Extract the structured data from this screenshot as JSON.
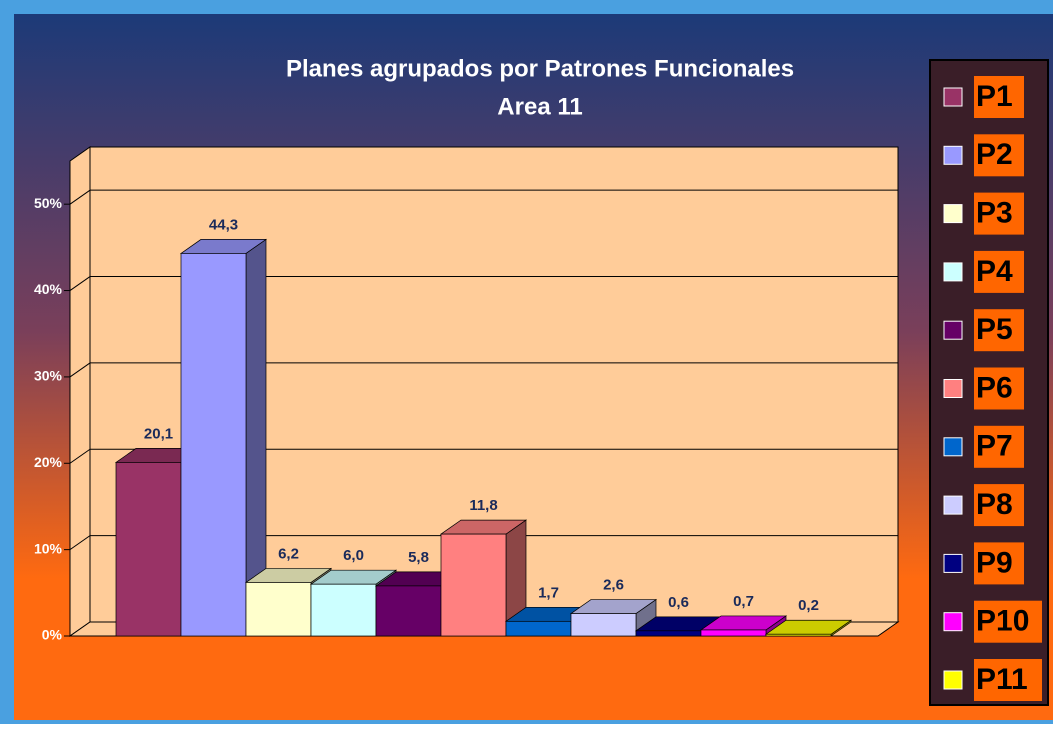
{
  "chart_data": {
    "type": "bar",
    "title": "Planes agrupados por Patrones Funcionales",
    "subtitle": "Area 11",
    "categories": [
      "P1",
      "P2",
      "P3",
      "P4",
      "P5",
      "P6",
      "P7",
      "P8",
      "P9",
      "P10",
      "P11"
    ],
    "series": [
      {
        "name": null,
        "values": [
          20.1,
          44.3,
          6.2,
          6.0,
          5.8,
          11.8,
          1.7,
          2.6,
          0.6,
          0.7,
          0.2
        ],
        "value_labels": [
          "20,1",
          "44,3",
          "6,2",
          "6,0",
          "5,8",
          "11,8",
          "1,7",
          "2,6",
          "0,6",
          "0,7",
          "0,2"
        ]
      }
    ],
    "colors": [
      "#993366",
      "#9999ff",
      "#ffffcc",
      "#ccffff",
      "#660066",
      "#ff8080",
      "#0066cc",
      "#ccccff",
      "#000080",
      "#ff00ff",
      "#ffff00"
    ],
    "ylim": [
      0,
      55
    ],
    "yticks": [
      {
        "value": 0,
        "label": "0%"
      },
      {
        "value": 10,
        "label": "10%"
      },
      {
        "value": 20,
        "label": "20%"
      },
      {
        "value": 30,
        "label": "30%"
      },
      {
        "value": 40,
        "label": "40%"
      },
      {
        "value": 50,
        "label": "50%"
      }
    ],
    "grid": true,
    "legend": "right"
  }
}
